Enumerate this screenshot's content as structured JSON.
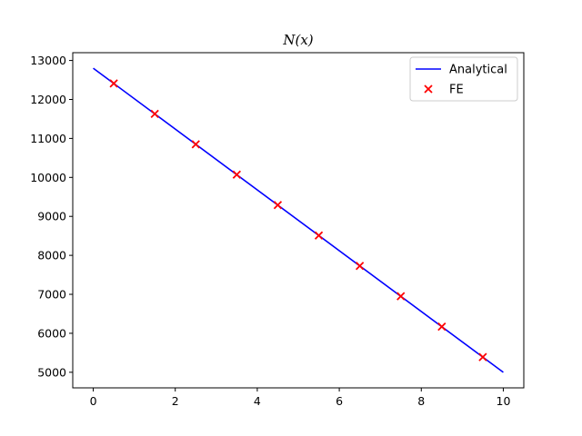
{
  "chart_data": {
    "type": "line",
    "title": "N(x)",
    "xlabel": "",
    "ylabel": "",
    "xlim": [
      -0.5,
      10.5
    ],
    "ylim": [
      4600,
      13200
    ],
    "xticks": [
      0,
      2,
      4,
      6,
      8,
      10
    ],
    "yticks": [
      5000,
      6000,
      7000,
      8000,
      9000,
      10000,
      11000,
      12000,
      13000
    ],
    "grid": false,
    "legend_position": "top-right",
    "series": [
      {
        "name": "Analytical",
        "type": "line",
        "color": "#0000ff",
        "x": [
          0,
          10
        ],
        "y": [
          12800,
          5000
        ]
      },
      {
        "name": "FE",
        "type": "scatter",
        "marker": "x",
        "color": "#ff0000",
        "x": [
          0.5,
          1.5,
          2.5,
          3.5,
          4.5,
          5.5,
          6.5,
          7.5,
          8.5,
          9.5
        ],
        "y": [
          12410,
          11630,
          10850,
          10070,
          9290,
          8510,
          7730,
          6950,
          6170,
          5390
        ]
      }
    ]
  }
}
